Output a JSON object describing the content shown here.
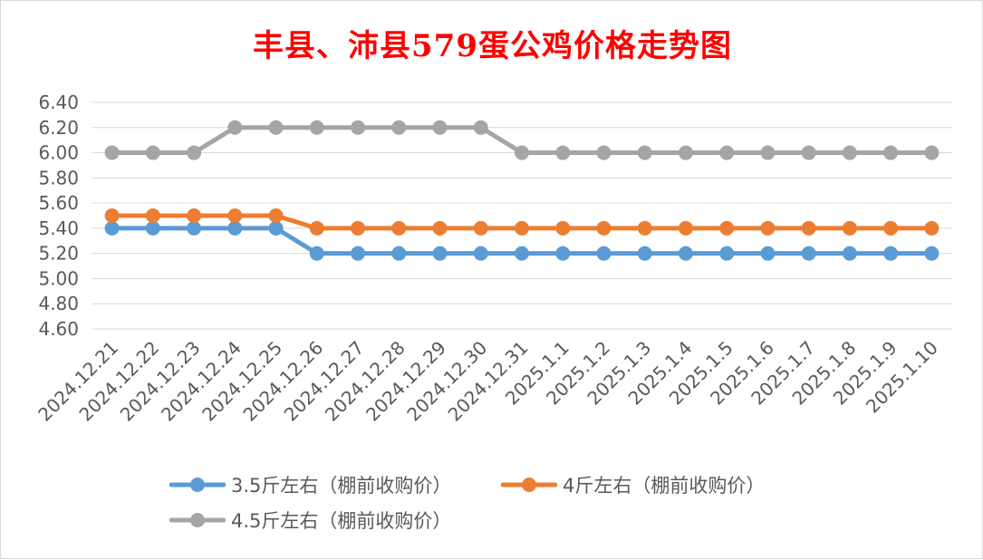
{
  "chart_data": {
    "type": "line",
    "title": "丰县、沛县579蛋公鸡价格走势图",
    "xlabel": "",
    "ylabel": "",
    "ylim": [
      4.6,
      6.4
    ],
    "ytick_labels": [
      "4.60",
      "4.80",
      "5.00",
      "5.20",
      "5.40",
      "5.60",
      "5.80",
      "6.00",
      "6.20",
      "6.40"
    ],
    "grid": true,
    "legend_position": "bottom",
    "categories": [
      "2024.12.21",
      "2024.12.22",
      "2024.12.23",
      "2024.12.24",
      "2024.12.25",
      "2024.12.26",
      "2024.12.27",
      "2024.12.28",
      "2024.12.29",
      "2024.12.30",
      "2024.12.31",
      "2025.1.1",
      "2025.1.2",
      "2025.1.3",
      "2025.1.4",
      "2025.1.5",
      "2025.1.6",
      "2025.1.7",
      "2025.1.8",
      "2025.1.9",
      "2025.1.10"
    ],
    "series": [
      {
        "name": "3.5斤左右（棚前收购价）",
        "color": "#5b9bd5",
        "values": [
          5.4,
          5.4,
          5.4,
          5.4,
          5.4,
          5.2,
          5.2,
          5.2,
          5.2,
          5.2,
          5.2,
          5.2,
          5.2,
          5.2,
          5.2,
          5.2,
          5.2,
          5.2,
          5.2,
          5.2,
          5.2
        ]
      },
      {
        "name": "4斤左右（棚前收购价）",
        "color": "#ed7d31",
        "values": [
          5.5,
          5.5,
          5.5,
          5.5,
          5.5,
          5.4,
          5.4,
          5.4,
          5.4,
          5.4,
          5.4,
          5.4,
          5.4,
          5.4,
          5.4,
          5.4,
          5.4,
          5.4,
          5.4,
          5.4,
          5.4
        ]
      },
      {
        "name": "4.5斤左右（棚前收购价）",
        "color": "#a5a5a5",
        "values": [
          6.0,
          6.0,
          6.0,
          6.2,
          6.2,
          6.2,
          6.2,
          6.2,
          6.2,
          6.2,
          6.0,
          6.0,
          6.0,
          6.0,
          6.0,
          6.0,
          6.0,
          6.0,
          6.0,
          6.0,
          6.0
        ]
      }
    ]
  }
}
